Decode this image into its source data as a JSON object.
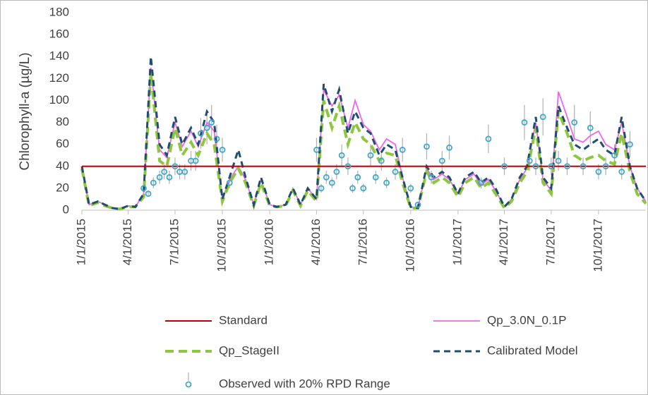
{
  "chart_data": {
    "type": "line",
    "y_label": "Chlorophyll-a (µg/L)",
    "ylim": [
      0,
      180
    ],
    "yticks": [
      0,
      20,
      40,
      60,
      80,
      100,
      120,
      140,
      160,
      180
    ],
    "xlim": [
      "1/1/2015",
      "1/1/2018"
    ],
    "xticks": [
      "1/1/2015",
      "4/1/2015",
      "7/1/2015",
      "10/1/2015",
      "1/1/2016",
      "4/1/2016",
      "7/1/2016",
      "10/1/2016",
      "1/1/2017",
      "4/1/2017",
      "7/1/2017",
      "10/1/2017"
    ],
    "standard": {
      "name": "Standard",
      "value": 40,
      "color": "#c00000"
    },
    "x": [
      "1/1/2015",
      "1/15/2015",
      "2/1/2015",
      "2/15/2015",
      "3/1/2015",
      "3/15/2015",
      "4/1/2015",
      "4/15/2015",
      "5/1/2015",
      "5/15/2015",
      "6/1/2015",
      "6/15/2015",
      "7/1/2015",
      "7/15/2015",
      "8/1/2015",
      "8/15/2015",
      "9/1/2015",
      "9/15/2015",
      "10/1/2015",
      "10/15/2015",
      "11/1/2015",
      "11/15/2015",
      "12/1/2015",
      "12/15/2015",
      "1/1/2016",
      "1/15/2016",
      "2/1/2016",
      "2/15/2016",
      "3/1/2016",
      "3/15/2016",
      "4/1/2016",
      "4/15/2016",
      "5/1/2016",
      "5/15/2016",
      "6/1/2016",
      "6/15/2016",
      "7/1/2016",
      "7/15/2016",
      "8/1/2016",
      "8/15/2016",
      "9/1/2016",
      "9/15/2016",
      "10/1/2016",
      "10/15/2016",
      "11/1/2016",
      "11/15/2016",
      "12/1/2016",
      "12/15/2016",
      "1/1/2017",
      "1/15/2017",
      "2/1/2017",
      "2/15/2017",
      "3/1/2017",
      "3/15/2017",
      "4/1/2017",
      "4/15/2017",
      "5/1/2017",
      "5/15/2017",
      "6/1/2017",
      "6/15/2017",
      "7/1/2017",
      "7/15/2017",
      "8/1/2017",
      "8/15/2017",
      "9/1/2017",
      "9/15/2017",
      "10/1/2017",
      "10/15/2017",
      "11/1/2017",
      "11/15/2017",
      "12/1/2017",
      "12/15/2017",
      "1/1/2018"
    ],
    "series": [
      {
        "name": "Qp_3.0N_0.1P",
        "color": "#ee66ee",
        "style": "solid",
        "values": [
          40,
          5,
          8,
          5,
          2,
          1,
          4,
          3,
          15,
          130,
          55,
          48,
          80,
          58,
          72,
          58,
          80,
          72,
          10,
          28,
          40,
          28,
          5,
          28,
          5,
          3,
          5,
          20,
          5,
          20,
          10,
          110,
          95,
          105,
          75,
          100,
          78,
          72,
          55,
          65,
          60,
          30,
          3,
          2,
          38,
          28,
          33,
          28,
          15,
          28,
          33,
          23,
          28,
          18,
          3,
          10,
          28,
          38,
          80,
          28,
          18,
          108,
          85,
          65,
          62,
          68,
          72,
          60,
          55,
          80,
          40,
          20,
          8
        ]
      },
      {
        "name": "Qp_StageII",
        "color": "#8dc63f",
        "style": "dash-thick",
        "values": [
          38,
          4,
          7,
          4,
          2,
          1,
          3,
          3,
          12,
          125,
          45,
          40,
          75,
          50,
          62,
          50,
          70,
          60,
          8,
          25,
          38,
          25,
          4,
          25,
          4,
          3,
          4,
          18,
          4,
          18,
          8,
          100,
          75,
          95,
          60,
          80,
          65,
          60,
          45,
          52,
          50,
          25,
          2,
          2,
          35,
          25,
          30,
          25,
          12,
          25,
          30,
          20,
          25,
          15,
          2,
          8,
          25,
          35,
          75,
          25,
          15,
          90,
          70,
          50,
          45,
          48,
          50,
          45,
          42,
          70,
          35,
          15,
          6
        ]
      },
      {
        "name": "Calibrated Model",
        "color": "#1f4e6e",
        "style": "dash",
        "values": [
          40,
          5,
          8,
          5,
          2,
          1,
          4,
          3,
          15,
          140,
          60,
          50,
          85,
          60,
          75,
          60,
          90,
          80,
          10,
          30,
          55,
          30,
          5,
          30,
          5,
          3,
          5,
          20,
          5,
          20,
          10,
          115,
          90,
          110,
          70,
          90,
          75,
          70,
          50,
          60,
          55,
          30,
          3,
          2,
          40,
          30,
          35,
          30,
          15,
          30,
          35,
          25,
          30,
          20,
          3,
          10,
          30,
          40,
          85,
          30,
          20,
          95,
          75,
          60,
          55,
          60,
          65,
          55,
          50,
          85,
          40,
          20,
          8
        ]
      }
    ],
    "observed": {
      "name": "Observed with 20% RPD Range",
      "color": "#3fa9c9",
      "x": [
        "5/1/2015",
        "5/10/2015",
        "5/20/2015",
        "6/1/2015",
        "6/10/2015",
        "6/20/2015",
        "7/1/2015",
        "7/10/2015",
        "7/20/2015",
        "8/1/2015",
        "8/10/2015",
        "8/20/2015",
        "9/1/2015",
        "9/10/2015",
        "9/20/2015",
        "10/1/2015",
        "10/15/2015",
        "4/1/2016",
        "4/10/2016",
        "4/20/2016",
        "5/1/2016",
        "5/10/2016",
        "5/20/2016",
        "6/1/2016",
        "6/10/2016",
        "6/20/2016",
        "7/1/2016",
        "7/15/2016",
        "7/25/2016",
        "8/5/2016",
        "8/15/2016",
        "9/1/2016",
        "9/15/2016",
        "10/1/2016",
        "10/15/2016",
        "11/1/2016",
        "11/10/2016",
        "12/1/2016",
        "12/15/2016",
        "2/15/2017",
        "3/1/2017",
        "4/1/2017",
        "5/10/2017",
        "5/20/2017",
        "6/1/2017",
        "6/15/2017",
        "7/1/2017",
        "7/15/2017",
        "8/1/2017",
        "8/15/2017",
        "9/1/2017",
        "9/15/2017",
        "10/1/2017",
        "10/15/2017",
        "11/1/2017",
        "11/15/2017",
        "12/1/2017"
      ],
      "values": [
        20,
        15,
        25,
        30,
        35,
        30,
        40,
        35,
        35,
        45,
        45,
        70,
        75,
        80,
        65,
        55,
        25,
        55,
        20,
        30,
        25,
        35,
        50,
        40,
        20,
        30,
        20,
        50,
        30,
        45,
        25,
        35,
        55,
        20,
        5,
        58,
        30,
        45,
        57,
        25,
        65,
        40,
        80,
        45,
        40,
        85,
        40,
        45,
        40,
        80,
        40,
        75,
        35,
        40,
        50,
        35,
        60
      ],
      "errors": [
        4,
        3,
        5,
        6,
        7,
        6,
        8,
        7,
        7,
        9,
        9,
        14,
        15,
        16,
        13,
        11,
        5,
        11,
        4,
        6,
        5,
        7,
        10,
        8,
        4,
        6,
        4,
        10,
        6,
        9,
        5,
        7,
        11,
        4,
        1,
        12,
        6,
        9,
        11,
        5,
        13,
        8,
        16,
        9,
        8,
        17,
        8,
        9,
        8,
        16,
        8,
        15,
        7,
        8,
        10,
        7,
        12
      ]
    }
  }
}
